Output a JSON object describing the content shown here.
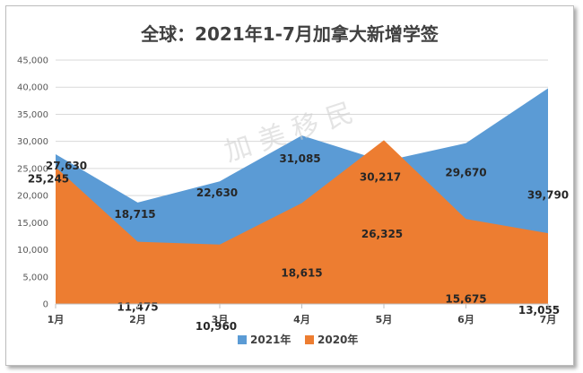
{
  "chart_data": {
    "type": "area",
    "title": "全球：2021年1-7月加拿大新增学签",
    "categories": [
      "1月",
      "2月",
      "3月",
      "4月",
      "5月",
      "6月",
      "7月"
    ],
    "series": [
      {
        "name": "2021年",
        "values": [
          27630,
          18715,
          22630,
          31085,
          26325,
          29670,
          39790
        ],
        "color": "#5b9bd5"
      },
      {
        "name": "2020年",
        "values": [
          25245,
          11475,
          10960,
          18615,
          30217,
          15675,
          13055
        ],
        "color": "#ed7d31"
      }
    ],
    "data_labels_2021": [
      "27,630",
      "18,715",
      "22,630",
      "31,085",
      "26,325",
      "29,670",
      "39,790"
    ],
    "data_labels_2020": [
      "25,245",
      "11,475",
      "10,960",
      "18,615",
      "30,217",
      "15,675",
      "13,055"
    ],
    "yticks": [
      "0",
      "5,000",
      "10,000",
      "15,000",
      "20,000",
      "25,000",
      "30,000",
      "35,000",
      "40,000",
      "45,000"
    ],
    "ylim": [
      0,
      45000
    ],
    "grid": true,
    "legend_position": "bottom",
    "watermark": "加 美 移 民"
  }
}
